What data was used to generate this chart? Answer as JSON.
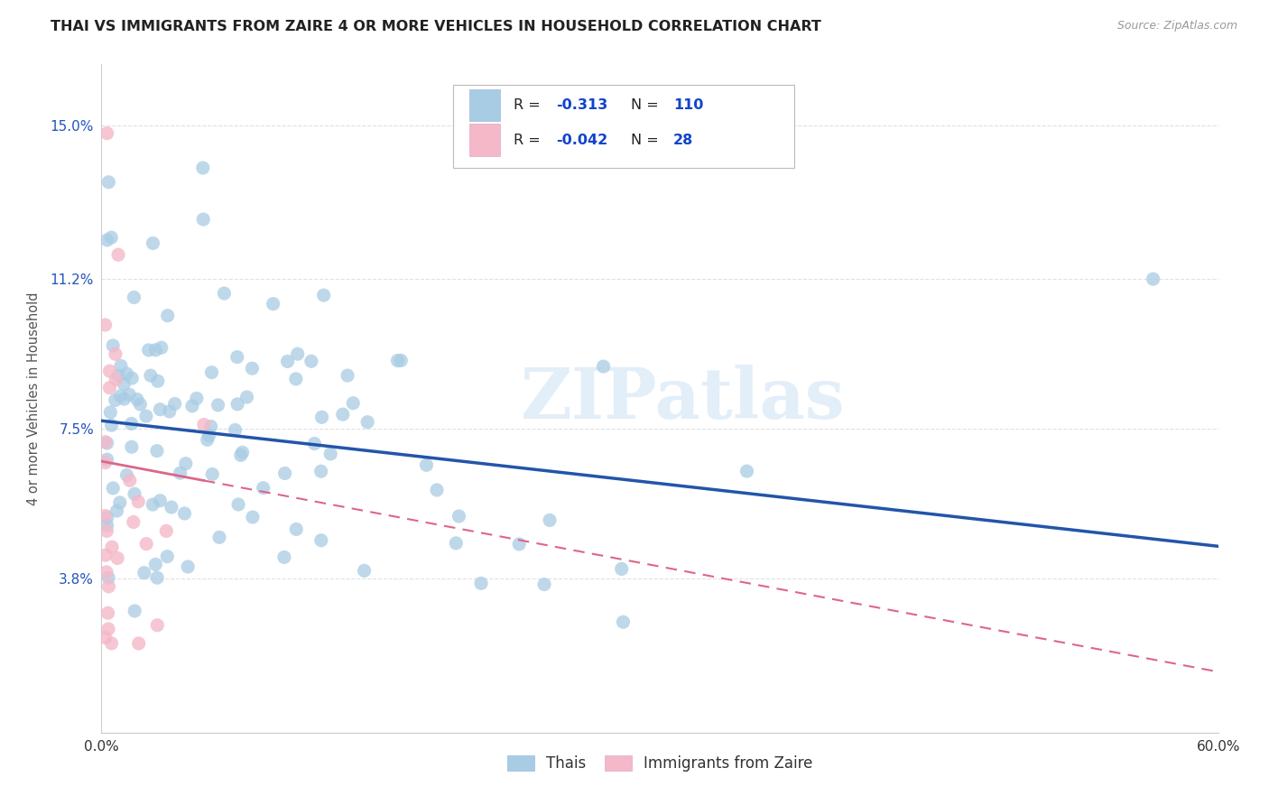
{
  "title": "THAI VS IMMIGRANTS FROM ZAIRE 4 OR MORE VEHICLES IN HOUSEHOLD CORRELATION CHART",
  "source": "Source: ZipAtlas.com",
  "ylabel_text": "4 or more Vehicles in Household",
  "x_min": 0.0,
  "x_max": 0.6,
  "y_min": 0.0,
  "y_max": 0.165,
  "y_ticks": [
    0.038,
    0.075,
    0.112,
    0.15
  ],
  "y_tick_labels": [
    "3.8%",
    "7.5%",
    "11.2%",
    "15.0%"
  ],
  "blue_color": "#a8cce4",
  "pink_color": "#f4b8c8",
  "line_blue": "#2255aa",
  "line_pink": "#dd6688",
  "legend_R_blue": "-0.313",
  "legend_N_blue": "110",
  "legend_R_pink": "-0.042",
  "legend_N_pink": "28",
  "legend_label_blue": "Thais",
  "legend_label_pink": "Immigrants from Zaire",
  "watermark": "ZIPatlas",
  "background_color": "#ffffff",
  "grid_color": "#e0e0e0",
  "title_color": "#222222",
  "axis_label_color": "#555555",
  "tick_label_color_y": "#2255bb",
  "tick_label_color_x": "#333333",
  "blue_line_start_y": 0.077,
  "blue_line_end_y": 0.046,
  "pink_line_start_x": 0.0,
  "pink_line_start_y": 0.067,
  "pink_line_end_x": 0.13,
  "pink_line_end_y": 0.058
}
